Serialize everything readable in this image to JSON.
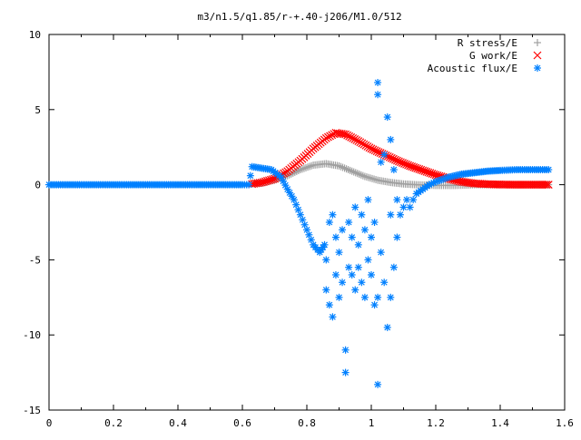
{
  "chart_data": {
    "type": "scatter",
    "title": "m3/n1.5/q1.85/r-+.40-j206/M1.0/512",
    "xlabel": "",
    "ylabel": "",
    "xlim": [
      0,
      1.6
    ],
    "ylim": [
      -15,
      10
    ],
    "xticks": [
      0,
      0.2,
      0.4,
      0.6,
      0.8,
      1,
      1.2,
      1.4,
      1.6
    ],
    "xtick_labels": [
      "0",
      "0.2",
      "0.4",
      "0.6",
      "0.8",
      "1",
      "1.2",
      "1.4",
      "1.6"
    ],
    "yticks": [
      -15,
      -10,
      -5,
      0,
      5,
      10
    ],
    "ytick_labels": [
      "-15",
      "-10",
      "-5",
      "0",
      "5",
      "10"
    ],
    "grid": false,
    "legend_position": "top-right",
    "series": [
      {
        "name": "R stress/E",
        "marker": "+",
        "color": "#a0a0a0",
        "points": [
          [
            0.63,
            0.05
          ],
          [
            0.66,
            0.1
          ],
          [
            0.7,
            0.3
          ],
          [
            0.74,
            0.6
          ],
          [
            0.78,
            1.0
          ],
          [
            0.82,
            1.3
          ],
          [
            0.86,
            1.4
          ],
          [
            0.9,
            1.25
          ],
          [
            0.94,
            0.9
          ],
          [
            0.98,
            0.55
          ],
          [
            1.02,
            0.3
          ],
          [
            1.06,
            0.15
          ],
          [
            1.1,
            0.05
          ],
          [
            1.14,
            0.0
          ],
          [
            1.2,
            -0.05
          ],
          [
            1.26,
            -0.05
          ],
          [
            1.32,
            0.0
          ],
          [
            1.4,
            0.0
          ],
          [
            1.5,
            0.0
          ],
          [
            1.55,
            0.0
          ]
        ]
      },
      {
        "name": "G work/E",
        "marker": "x",
        "color": "#ff0000",
        "points": [
          [
            0.63,
            0.05
          ],
          [
            0.66,
            0.15
          ],
          [
            0.7,
            0.4
          ],
          [
            0.74,
            0.9
          ],
          [
            0.78,
            1.6
          ],
          [
            0.82,
            2.4
          ],
          [
            0.86,
            3.1
          ],
          [
            0.89,
            3.45
          ],
          [
            0.92,
            3.35
          ],
          [
            0.96,
            2.9
          ],
          [
            1.0,
            2.4
          ],
          [
            1.04,
            2.0
          ],
          [
            1.08,
            1.6
          ],
          [
            1.12,
            1.25
          ],
          [
            1.16,
            0.95
          ],
          [
            1.2,
            0.65
          ],
          [
            1.24,
            0.4
          ],
          [
            1.28,
            0.2
          ],
          [
            1.32,
            0.08
          ],
          [
            1.38,
            0.02
          ],
          [
            1.45,
            0.0
          ],
          [
            1.55,
            0.0
          ]
        ]
      },
      {
        "name": "Acoustic flux/E",
        "marker": "*",
        "color": "#0080ff",
        "points": [
          [
            0.0,
            0.0
          ],
          [
            0.1,
            0.0
          ],
          [
            0.2,
            0.0
          ],
          [
            0.3,
            0.0
          ],
          [
            0.4,
            0.0
          ],
          [
            0.5,
            0.0
          ],
          [
            0.6,
            0.0
          ],
          [
            0.62,
            0.0
          ],
          [
            0.63,
            1.2
          ],
          [
            0.66,
            1.1
          ],
          [
            0.69,
            1.0
          ],
          [
            0.72,
            0.5
          ],
          [
            0.74,
            -0.3
          ],
          [
            0.76,
            -1.0
          ],
          [
            0.78,
            -2.0
          ],
          [
            0.8,
            -3.0
          ],
          [
            0.82,
            -4.0
          ],
          [
            0.84,
            -4.5
          ],
          [
            0.855,
            -4.0
          ],
          [
            0.86,
            -5.0
          ],
          [
            0.86,
            -7.0
          ],
          [
            0.87,
            -2.5
          ],
          [
            0.87,
            -8.0
          ],
          [
            0.88,
            -2.0
          ],
          [
            0.88,
            -8.8
          ],
          [
            0.89,
            -3.5
          ],
          [
            0.89,
            -6.0
          ],
          [
            0.9,
            -4.5
          ],
          [
            0.9,
            -7.5
          ],
          [
            0.91,
            -3.0
          ],
          [
            0.91,
            -6.5
          ],
          [
            0.92,
            -11.0
          ],
          [
            0.92,
            -12.5
          ],
          [
            0.93,
            -2.5
          ],
          [
            0.93,
            -5.5
          ],
          [
            0.94,
            -3.5
          ],
          [
            0.94,
            -6.0
          ],
          [
            0.95,
            -1.5
          ],
          [
            0.95,
            -7.0
          ],
          [
            0.96,
            -4.0
          ],
          [
            0.96,
            -5.5
          ],
          [
            0.97,
            -2.0
          ],
          [
            0.97,
            -6.5
          ],
          [
            0.98,
            -3.0
          ],
          [
            0.98,
            -7.5
          ],
          [
            0.99,
            -1.0
          ],
          [
            0.99,
            -5.0
          ],
          [
            1.0,
            -3.5
          ],
          [
            1.0,
            -6.0
          ],
          [
            1.01,
            -2.5
          ],
          [
            1.01,
            -8.0
          ],
          [
            1.02,
            6.8
          ],
          [
            1.02,
            6.0
          ],
          [
            1.02,
            -7.5
          ],
          [
            1.02,
            -13.3
          ],
          [
            1.03,
            1.5
          ],
          [
            1.03,
            -4.5
          ],
          [
            1.04,
            2.0
          ],
          [
            1.04,
            -6.5
          ],
          [
            1.05,
            4.5
          ],
          [
            1.05,
            -9.5
          ],
          [
            1.06,
            3.0
          ],
          [
            1.06,
            -2.0
          ],
          [
            1.06,
            -7.5
          ],
          [
            1.07,
            1.0
          ],
          [
            1.07,
            -5.5
          ],
          [
            1.08,
            -1.0
          ],
          [
            1.08,
            -3.5
          ],
          [
            1.09,
            -2.0
          ],
          [
            1.1,
            -1.5
          ],
          [
            1.11,
            -1.0
          ],
          [
            1.12,
            -1.5
          ],
          [
            1.13,
            -1.0
          ],
          [
            1.14,
            -0.6
          ],
          [
            1.16,
            -0.3
          ],
          [
            1.18,
            0.0
          ],
          [
            1.2,
            0.2
          ],
          [
            1.24,
            0.5
          ],
          [
            1.28,
            0.7
          ],
          [
            1.32,
            0.8
          ],
          [
            1.36,
            0.9
          ],
          [
            1.4,
            0.95
          ],
          [
            1.45,
            1.0
          ],
          [
            1.5,
            1.0
          ],
          [
            1.55,
            1.0
          ]
        ]
      }
    ]
  }
}
